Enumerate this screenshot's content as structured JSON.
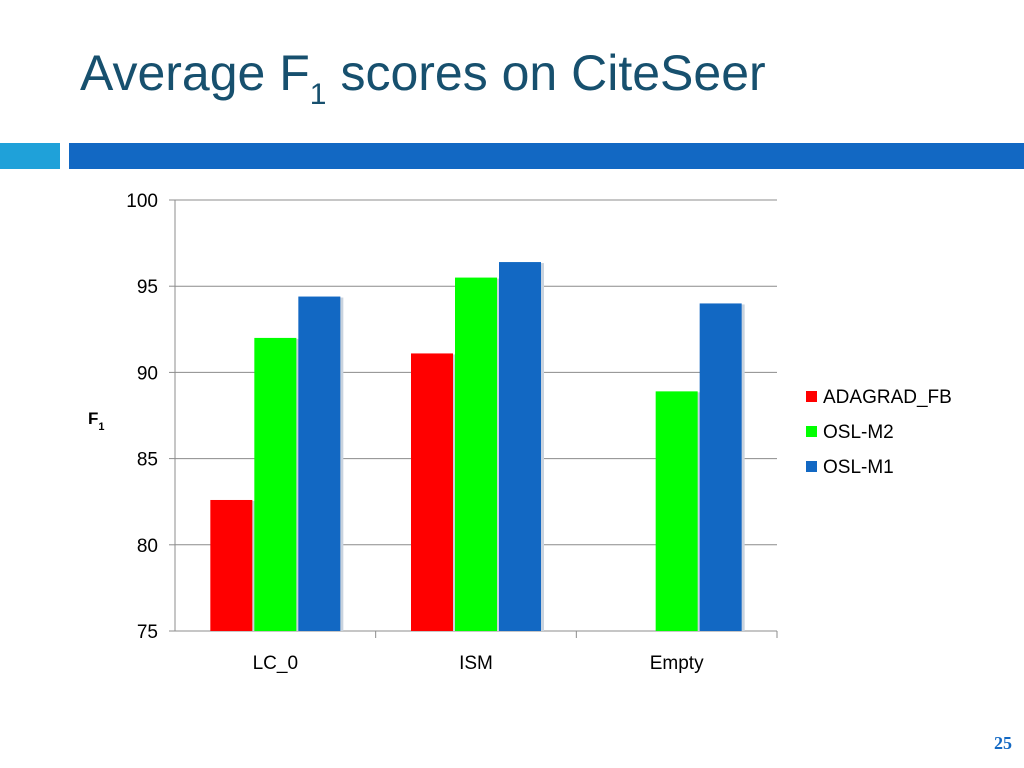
{
  "slide": {
    "title_main": "Average F",
    "title_sub": "1",
    "title_rest": "scores on CiteSeer",
    "page_number": "25"
  },
  "colors": {
    "title": "#17506e",
    "accent_light": "#1fa1d9",
    "accent_dark": "#1268c3"
  },
  "chart_data": {
    "type": "bar",
    "title": "",
    "xlabel": "",
    "ylabel": "F",
    "ylabel_sub": "1",
    "categories": [
      "LC_0",
      "ISM",
      "Empty"
    ],
    "series": [
      {
        "name": "ADAGRAD_FB",
        "color": "#ff0000",
        "values": [
          82.6,
          91.1,
          null
        ]
      },
      {
        "name": "OSL-M2",
        "color": "#00ff00",
        "values": [
          92.0,
          95.5,
          88.9
        ]
      },
      {
        "name": "OSL-M1",
        "color": "#1268c3",
        "values": [
          94.4,
          96.4,
          94.0
        ]
      }
    ],
    "ylim": [
      75,
      100
    ],
    "yticks": [
      75,
      80,
      85,
      90,
      95,
      100
    ],
    "grid": true,
    "legend_position": "right"
  }
}
